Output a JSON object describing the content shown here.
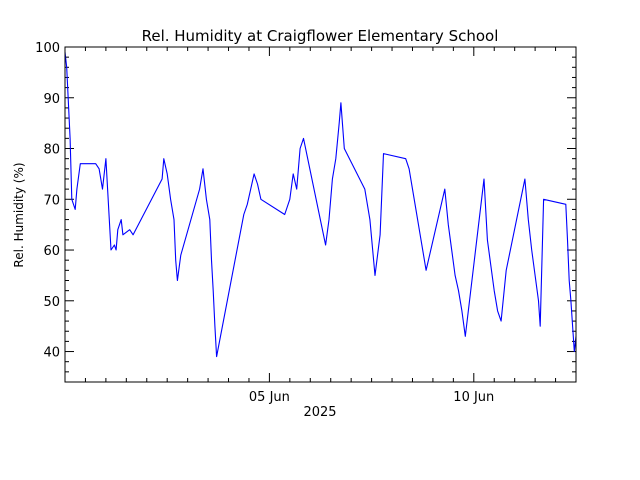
{
  "chart_data": {
    "type": "line",
    "title": "Rel. Humidity at Craigflower Elementary School",
    "xlabel": "2025",
    "ylabel": "Rel. Humidity (%)",
    "ylim": [
      34,
      100
    ],
    "xlim": [
      "2025-05-31",
      "2025-06-12 12:00"
    ],
    "grid": false,
    "colors": {
      "line": "#0000ff",
      "axes": "#000000",
      "background": "#ffffff"
    },
    "x_ticks": [
      {
        "value": "2025-06-05",
        "label": "05 Jun"
      },
      {
        "value": "2025-06-10",
        "label": "10 Jun"
      }
    ],
    "y_ticks": [
      40,
      50,
      60,
      70,
      80,
      90,
      100
    ],
    "series": [
      {
        "x": [
          "2025-05-31 00:00",
          "2025-05-31 01:00",
          "2025-05-31 03:00",
          "2025-05-31 04:00",
          "2025-05-31 06:00",
          "2025-05-31 07:00",
          "2025-05-31 09:00",
          "2025-05-31 10:00",
          "2025-05-31 12:00",
          "2025-05-31 14:00",
          "2025-05-31 16:00",
          "2025-05-31 18:00",
          "2025-05-31 20:00",
          "2025-05-31 22:00",
          "2025-06-01 00:00",
          "2025-06-01 01:00",
          "2025-06-01 02:00",
          "2025-06-01 03:00",
          "2025-06-01 05:00",
          "2025-06-01 06:00",
          "2025-06-01 07:00",
          "2025-06-01 09:00",
          "2025-06-01 10:00",
          "2025-06-01 14:00",
          "2025-06-01 16:00",
          "2025-06-02 09:00",
          "2025-06-02 10:00",
          "2025-06-02 12:00",
          "2025-06-02 14:00",
          "2025-06-02 16:00",
          "2025-06-02 17:00",
          "2025-06-02 18:00",
          "2025-06-02 20:00",
          "2025-06-03 07:00",
          "2025-06-03 09:00",
          "2025-06-03 11:00",
          "2025-06-03 13:00",
          "2025-06-03 14:00",
          "2025-06-03 15:00",
          "2025-06-03 16:00",
          "2025-06-03 17:00",
          "2025-06-04 09:00",
          "2025-06-04 11:00",
          "2025-06-04 13:00",
          "2025-06-04 15:00",
          "2025-06-04 17:00",
          "2025-06-04 19:00",
          "2025-06-05 09:00",
          "2025-06-05 12:00",
          "2025-06-05 14:00",
          "2025-06-05 16:00",
          "2025-06-05 18:00",
          "2025-06-05 20:00",
          "2025-06-06 09:00",
          "2025-06-06 11:00",
          "2025-06-06 13:00",
          "2025-06-06 15:00",
          "2025-06-06 17:00",
          "2025-06-06 18:00",
          "2025-06-06 20:00",
          "2025-06-07 08:00",
          "2025-06-07 09:00",
          "2025-06-07 11:00",
          "2025-06-07 14:00",
          "2025-06-07 17:00",
          "2025-06-07 19:00",
          "2025-06-08 08:00",
          "2025-06-08 10:00",
          "2025-06-08 12:00",
          "2025-06-08 14:00",
          "2025-06-08 16:00",
          "2025-06-08 18:00",
          "2025-06-08 20:00",
          "2025-06-09 07:00",
          "2025-06-09 09:00",
          "2025-06-09 11:00",
          "2025-06-09 13:00",
          "2025-06-09 15:00",
          "2025-06-09 17:00",
          "2025-06-09 19:00",
          "2025-06-10 06:00",
          "2025-06-10 08:00",
          "2025-06-10 10:00",
          "2025-06-10 12:00",
          "2025-06-10 14:00",
          "2025-06-10 16:00",
          "2025-06-10 19:00",
          "2025-06-11 06:00",
          "2025-06-11 08:00",
          "2025-06-11 10:00",
          "2025-06-11 12:00",
          "2025-06-11 14:00",
          "2025-06-11 15:00",
          "2025-06-11 17:00",
          "2025-06-12 06:00",
          "2025-06-12 07:00",
          "2025-06-12 08:00",
          "2025-06-12 09:00",
          "2025-06-12 11:00",
          "2025-06-12 12:00"
        ],
        "y": [
          99,
          96,
          82,
          70,
          68,
          72,
          77,
          77,
          77,
          77,
          77,
          77,
          76,
          72,
          78,
          72,
          66,
          60,
          61,
          60,
          64,
          66,
          63,
          64,
          63,
          74,
          78,
          75,
          70,
          66,
          58,
          54,
          59,
          72,
          76,
          70,
          66,
          58,
          52,
          45,
          39,
          67,
          69,
          72,
          75,
          73,
          70,
          67,
          70,
          75,
          72,
          80,
          82,
          61,
          66,
          74,
          78,
          85,
          89,
          80,
          72,
          70,
          66,
          55,
          63,
          79,
          78,
          76,
          72,
          68,
          64,
          60,
          56,
          72,
          65,
          60,
          55,
          52,
          48,
          43,
          74,
          62,
          57,
          52,
          48,
          46,
          56,
          74,
          66,
          60,
          55,
          50,
          45,
          70,
          69,
          62,
          54,
          50,
          40,
          43
        ]
      }
    ]
  }
}
